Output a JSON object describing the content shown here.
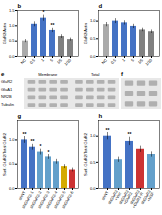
{
  "chart_data": [
    {
      "type": "bar",
      "title": "b",
      "categories": [
        "NC",
        "0.5",
        "1",
        "5",
        "1/5",
        "1/10"
      ],
      "values": [
        0.5,
        1.05,
        1.25,
        0.85,
        0.65,
        0.55
      ],
      "errors": [
        0.05,
        0.08,
        0.1,
        0.07,
        0.06,
        0.05
      ],
      "colors": [
        "#aaaaaa",
        "#4472c4",
        "#4472c4",
        "#4472c4",
        "#808080",
        "#808080"
      ],
      "ylabel": "GluR2/Actin",
      "ylim": [
        0,
        1.5
      ],
      "yticks": [
        {
          "value": 0,
          "label": "0.0"
        },
        0.5,
        {
          "value": 1,
          "label": "1.0"
        },
        1.5
      ],
      "annotations": [
        {
          "category": "1",
          "text": "*"
        },
        {
          "category": "5",
          "text": "**"
        }
      ]
    },
    {
      "type": "bar",
      "title": "d",
      "categories": [
        "NC",
        "0.5",
        "1",
        "5",
        "1/5",
        "1/10"
      ],
      "values": [
        0.9,
        1.0,
        0.95,
        0.85,
        0.75,
        0.7
      ],
      "errors": [
        0.06,
        0.07,
        0.06,
        0.06,
        0.05,
        0.05
      ],
      "colors": [
        "#aaaaaa",
        "#4472c4",
        "#4472c4",
        "#4472c4",
        "#808080",
        "#808080"
      ],
      "ylabel": "GluR2/Actin",
      "ylim": [
        0,
        1.3
      ],
      "yticks": [
        {
          "value": 0,
          "label": "0.0"
        },
        0.5,
        {
          "value": 1,
          "label": "1.0"
        }
      ]
    },
    {
      "type": "bar",
      "title": "g",
      "categories": [
        "shNT",
        "shGluR2-1",
        "shGluR2-2",
        "shGluR2-3",
        "shGluR2-4",
        "shGluR2-5",
        "shGluR2-6"
      ],
      "values": [
        1.0,
        0.85,
        0.75,
        0.65,
        0.55,
        0.45,
        0.38
      ],
      "errors": [
        0.07,
        0.06,
        0.06,
        0.05,
        0.05,
        0.04,
        0.04
      ],
      "colors": [
        "#4472c4",
        "#4472c4",
        "#63a0cb",
        "#63a0cb",
        "#63a0cb",
        "#d4aa00",
        "#cc3333"
      ],
      "ylabel": "Surf. GluR2/Total GluR2",
      "ylim": [
        0,
        1.4
      ],
      "yticks": [
        {
          "value": 0,
          "label": "0.0"
        },
        0.5,
        {
          "value": 1,
          "label": "1.0"
        }
      ],
      "annotations": [
        {
          "category": "shNT",
          "text": "**"
        },
        {
          "category": "shGluR2-1",
          "text": "**"
        },
        {
          "category": "shGluR2-2",
          "text": "*"
        },
        {
          "category": "shGluR2-3",
          "text": "*"
        }
      ]
    },
    {
      "type": "bar",
      "title": "h",
      "categories": [
        "shNT",
        "shGluR2\n+Vec",
        "shGluR2\n+GluR2",
        "shGluR2\n+GluR2-R",
        "shGluR2\n+NSF"
      ],
      "values": [
        1.0,
        0.55,
        0.9,
        0.75,
        0.65
      ],
      "errors": [
        0.07,
        0.05,
        0.08,
        0.06,
        0.05
      ],
      "colors": [
        "#4472c4",
        "#63a0cb",
        "#4472c4",
        "#cc3333",
        "#63a0cb"
      ],
      "ylabel": "Surf. GluR2/Total GluR2",
      "ylim": [
        0,
        1.3
      ],
      "yticks": [
        {
          "value": 0,
          "label": "0.0"
        },
        0.5,
        {
          "value": 1,
          "label": "1.0"
        }
      ],
      "annotations": [
        {
          "category": "shNT",
          "text": "**"
        },
        {
          "category": "shGluR2\n+GluR2",
          "text": "**"
        }
      ]
    },
    {
      "type": "blot",
      "title": "e",
      "categories": [
        "GluR2",
        "GluA1",
        "NR2B",
        "Tubulin"
      ],
      "annotations": [
        "Membrane",
        "Total"
      ]
    },
    {
      "type": "blot",
      "title": "f"
    }
  ]
}
